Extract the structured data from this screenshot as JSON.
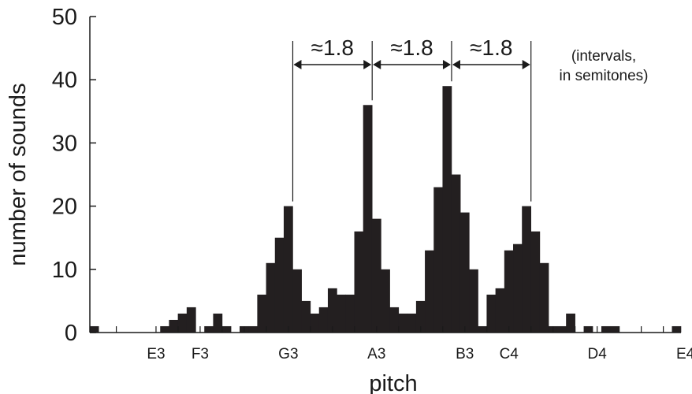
{
  "chart_data": {
    "type": "bar",
    "xlabel": "pitch",
    "ylabel": "number of sounds",
    "ylim": [
      0,
      50
    ],
    "y_ticks": [
      0,
      10,
      20,
      30,
      40,
      50
    ],
    "x_tick_labels": [
      {
        "label": "E3",
        "bin": 7.5
      },
      {
        "label": "F3",
        "bin": 12.5
      },
      {
        "label": "G3",
        "bin": 22.5
      },
      {
        "label": "A3",
        "bin": 32.5
      },
      {
        "label": "B3",
        "bin": 42.5
      },
      {
        "label": "C4",
        "bin": 47.5
      },
      {
        "label": "D4",
        "bin": 57.5
      },
      {
        "label": "E4",
        "bin": 67.5
      }
    ],
    "bin_count": 67,
    "values": [
      1,
      0,
      0,
      0,
      0,
      0,
      0,
      0,
      1,
      2,
      3,
      4,
      0,
      1,
      3,
      1,
      0,
      1,
      1,
      6,
      11,
      15,
      20,
      10,
      5,
      3,
      4,
      7,
      6,
      6,
      16,
      36,
      18,
      10,
      4,
      3,
      3,
      5,
      13,
      23,
      39,
      25,
      19,
      10,
      1,
      6,
      7,
      13,
      14,
      20,
      16,
      11,
      1,
      1,
      3,
      0,
      1,
      0,
      1,
      1,
      0,
      0,
      0,
      0,
      0,
      0,
      1
    ],
    "bar_color": "#231f20",
    "grid": false,
    "annotations": {
      "interval_label": "≈1.8",
      "interval_peaks_bin": [
        22.5,
        31.5,
        40.5,
        49.5
      ],
      "note_line1": "(intervals,",
      "note_line2": "in semitones)"
    }
  }
}
